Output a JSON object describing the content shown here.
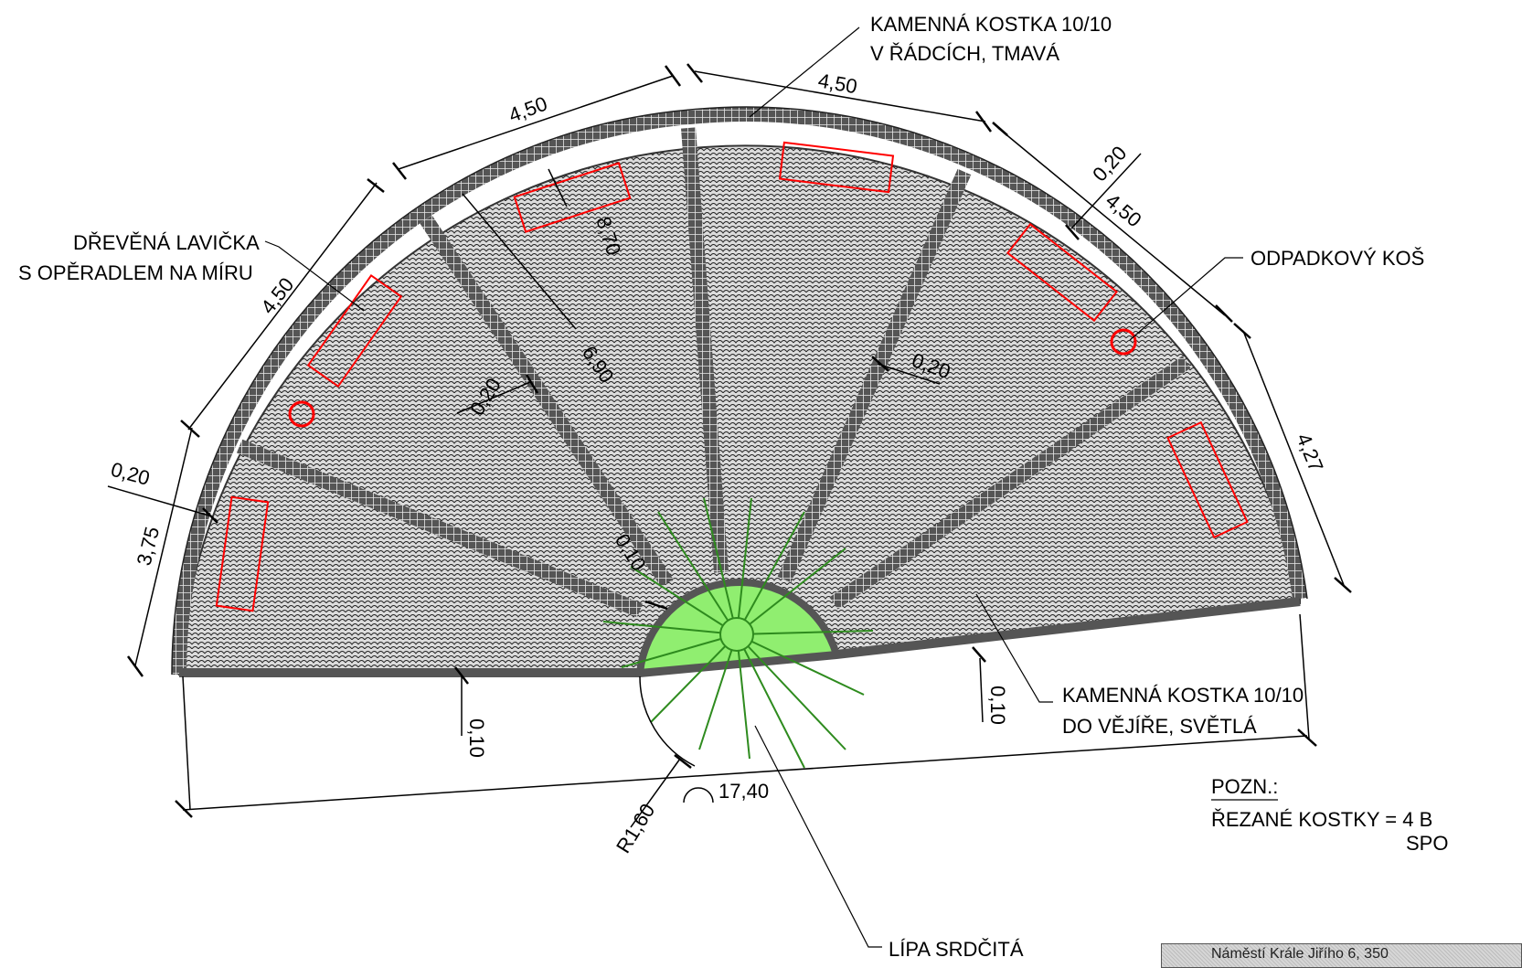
{
  "labels": {
    "dark_stone": [
      "KAMENNÁ KOSTKA 10/10",
      "V ŘÁDCÍCH, TMAVÁ"
    ],
    "bench": [
      "DŘEVĚNÁ LAVIČKA",
      "S OPĚRADLEM NA MÍRU"
    ],
    "bin": "ODPADKOVÝ KOŠ",
    "light_stone": [
      "KAMENNÁ KOSTKA 10/10",
      "DO VĚJÍŘE, SVĚTLÁ"
    ],
    "tree": "LÍPA SRDČITÁ"
  },
  "note": {
    "title": "POZN.:",
    "line1": "ŘEZANÉ KOSTKY = 4 B",
    "line2": "SPO"
  },
  "dimensions": {
    "arc_top_left": "4,50",
    "arc_top_right": "4,50",
    "arc_left_upper": "4,50",
    "arc_right_upper": "4,50",
    "arc_right_lower": "4,27",
    "arc_left_lower": "3,75",
    "rim_width_left": "0,20",
    "rim_width_right": "0,20",
    "strip_width_center": "0,20",
    "strip_width_left": "0,20",
    "radius_inner": "8,70",
    "radius_mid": "6,90",
    "edge_small": "0,10",
    "edge_bottom_left": "0,10",
    "edge_bottom_right": "0,10",
    "tree_radius": "R1,60",
    "base_length": "17,40"
  },
  "footer": "Náměstí Krále Jiřího 6, 350",
  "colors": {
    "dark_band": "#4d4d4d",
    "paving_fill": "#d9d9d9",
    "bench": "#ff0000",
    "tree_fill": "#90ee70",
    "tree_line": "#2e8b1e"
  }
}
